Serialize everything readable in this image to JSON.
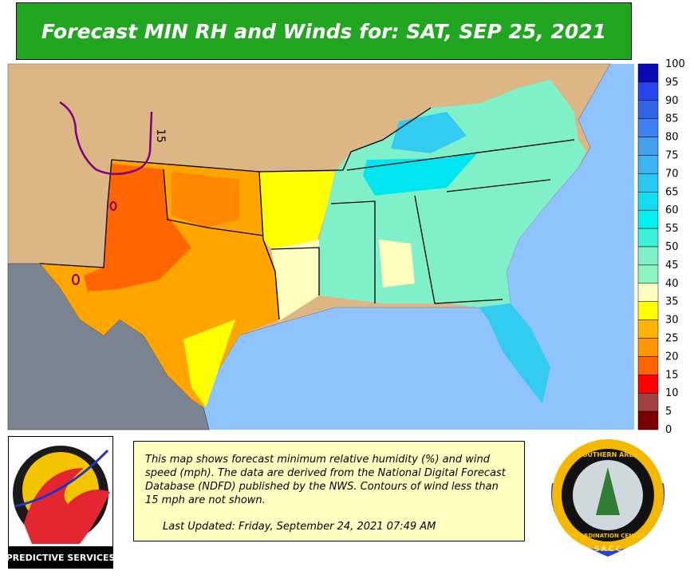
{
  "header": {
    "title": "Forecast MIN RH and Winds for:  SAT, SEP 25, 2021"
  },
  "map": {
    "contour_labels": [
      "15"
    ]
  },
  "legend": {
    "ticks": [
      100,
      95,
      90,
      85,
      80,
      75,
      70,
      65,
      60,
      55,
      50,
      45,
      40,
      35,
      30,
      25,
      20,
      15,
      10,
      5,
      0
    ],
    "colors": [
      "#0a0ab4",
      "#2846f0",
      "#3264e6",
      "#3c82f0",
      "#46a0f0",
      "#3cb4f0",
      "#28c8f0",
      "#14dcf0",
      "#00f0f0",
      "#3cf0dc",
      "#80f0c8",
      "#8cf5c0",
      "#ffffc0",
      "#ffff00",
      "#ffb400",
      "#ff9600",
      "#ff6400",
      "#ff0000",
      "#a04040",
      "#780000"
    ]
  },
  "description": {
    "text": "This map shows forecast minimum relative humidity (%) and wind speed (mph). The data are derived from the National Digital Forecast Database (NDFD) published by the NWS. Contours of wind less than 15 mph are not shown.",
    "last_updated": "Last Updated:  Friday, September 24, 2021 07:49 AM"
  },
  "logos": {
    "left": "PREDICTIVE SERVICES",
    "right_top": "SOUTHERN AREA",
    "right_bottom": "COORDINATION CENTER",
    "right_acronym": "S A C C"
  }
}
